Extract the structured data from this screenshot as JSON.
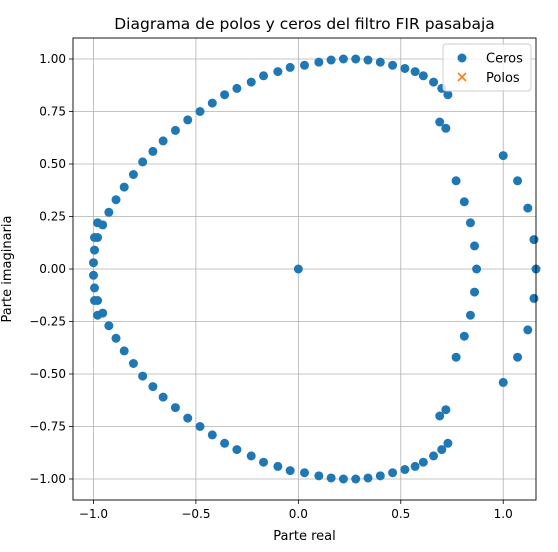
{
  "chart_data": {
    "type": "scatter",
    "title": "Diagrama de polos y ceros del filtro FIR pasabaja",
    "xlabel": "Parte real",
    "ylabel": "Parte imaginaria",
    "xlim": [
      -1.1,
      1.16
    ],
    "ylim": [
      -1.1,
      1.1
    ],
    "xticks": [
      -1.0,
      -0.5,
      0.0,
      0.5,
      1.0
    ],
    "xtick_labels": [
      "−1.0",
      "−0.5",
      "0.0",
      "0.5",
      "1.0"
    ],
    "yticks": [
      -1.0,
      -0.75,
      -0.5,
      -0.25,
      0.0,
      0.25,
      0.5,
      0.75,
      1.0
    ],
    "ytick_labels": [
      "−1.00",
      "−0.75",
      "−0.50",
      "−0.25",
      "0.00",
      "0.25",
      "0.50",
      "0.75",
      "1.00"
    ],
    "grid": true,
    "legend_position": "top-right",
    "series": [
      {
        "name": "Ceros",
        "marker": "circle",
        "color": "#1f77b4",
        "x": [
          -1.0,
          -0.995,
          -0.98,
          -0.955,
          -0.925,
          -0.89,
          -0.85,
          -0.805,
          -0.76,
          -0.71,
          -0.66,
          -0.6,
          -0.54,
          -0.48,
          -0.42,
          -0.36,
          -0.3,
          -0.23,
          -0.17,
          -0.1,
          -0.04,
          0.03,
          0.1,
          0.16,
          0.22,
          0.28,
          0.34,
          0.4,
          0.46,
          0.52,
          0.57,
          0.61,
          0.66,
          0.7,
          0.73,
          -0.995,
          -0.98,
          -0.955,
          -0.925,
          -0.89,
          -0.85,
          -0.805,
          -0.76,
          -0.71,
          -0.66,
          -0.6,
          -0.54,
          -0.48,
          -0.42,
          -0.36,
          -0.3,
          -0.23,
          -0.17,
          -0.1,
          -0.04,
          0.03,
          0.1,
          0.16,
          0.22,
          0.28,
          0.34,
          0.4,
          0.46,
          0.52,
          0.57,
          0.61,
          0.66,
          0.7,
          0.73,
          -1.0,
          -0.995,
          -0.98,
          -0.995,
          -0.98,
          0.0,
          0.69,
          0.72,
          0.69,
          0.72,
          0.77,
          0.81,
          0.84,
          0.86,
          0.87,
          0.86,
          0.84,
          0.81,
          0.77,
          1.0,
          1.07,
          1.12,
          1.15,
          1.16,
          1.15,
          1.12,
          1.07,
          1.0
        ],
        "y": [
          0.03,
          0.09,
          0.15,
          0.21,
          0.27,
          0.33,
          0.39,
          0.45,
          0.51,
          0.56,
          0.61,
          0.66,
          0.71,
          0.75,
          0.79,
          0.83,
          0.86,
          0.89,
          0.92,
          0.94,
          0.96,
          0.97,
          0.985,
          0.995,
          1.0,
          1.0,
          0.995,
          0.985,
          0.97,
          0.955,
          0.94,
          0.92,
          0.89,
          0.86,
          0.83,
          -0.09,
          -0.15,
          -0.21,
          -0.27,
          -0.33,
          -0.39,
          -0.45,
          -0.51,
          -0.56,
          -0.61,
          -0.66,
          -0.71,
          -0.75,
          -0.79,
          -0.83,
          -0.86,
          -0.89,
          -0.92,
          -0.94,
          -0.96,
          -0.97,
          -0.985,
          -0.995,
          -1.0,
          -1.0,
          -0.995,
          -0.985,
          -0.97,
          -0.955,
          -0.94,
          -0.92,
          -0.89,
          -0.86,
          -0.83,
          -0.03,
          0.15,
          0.22,
          -0.15,
          -0.22,
          0.0,
          0.7,
          0.67,
          -0.7,
          -0.67,
          0.42,
          0.32,
          0.22,
          0.11,
          0.0,
          -0.11,
          -0.22,
          -0.32,
          -0.42,
          0.54,
          0.42,
          0.29,
          0.14,
          0.0,
          -0.14,
          -0.29,
          -0.42,
          -0.54
        ]
      },
      {
        "name": "Polos",
        "marker": "x",
        "color": "#ff7f0e",
        "x": [],
        "y": []
      }
    ]
  }
}
